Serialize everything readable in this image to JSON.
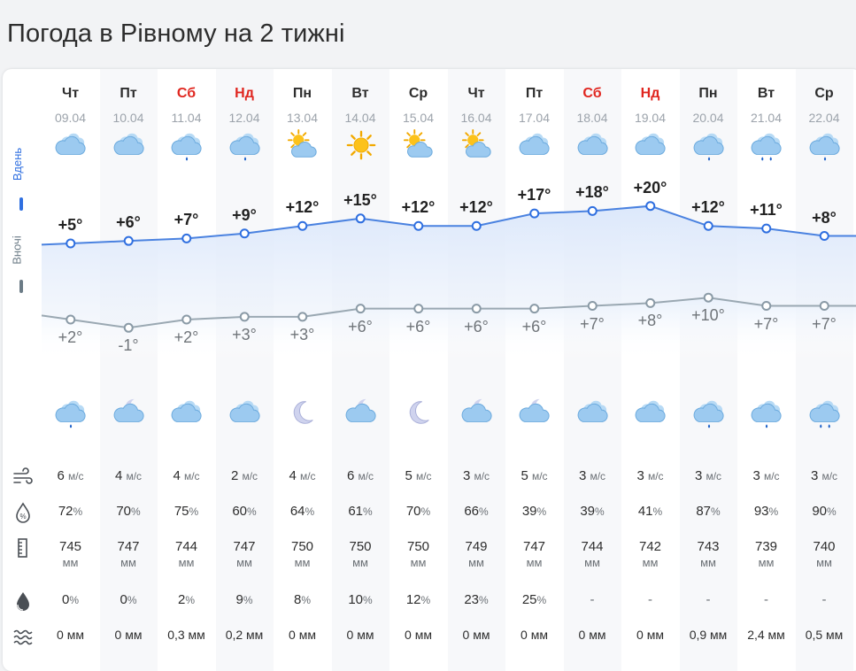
{
  "page": {
    "title": "Погода в Рівному на 2 тижні"
  },
  "legend": {
    "day_label": "Вдень",
    "night_label": "Вночі",
    "day_color": "#2f6fe0",
    "night_color": "#6b7b86"
  },
  "days": [
    {
      "name": "Чт",
      "date": "09.04",
      "weekend": false,
      "day_icon": "cloudy",
      "night_icon": "cloud-rain",
      "t_day": "+5°",
      "t_night": "+2°",
      "t_day_v": 5,
      "t_night_v": 2,
      "wind": "6",
      "humidity": "72",
      "pressure": "745",
      "precip_prob": "0",
      "precip": "0 мм"
    },
    {
      "name": "Пт",
      "date": "10.04",
      "weekend": false,
      "day_icon": "cloudy",
      "night_icon": "cloud-moon",
      "t_day": "+6°",
      "t_night": "-1°",
      "t_day_v": 6,
      "t_night_v": -1,
      "wind": "4",
      "humidity": "70",
      "pressure": "747",
      "precip_prob": "0",
      "precip": "0 мм"
    },
    {
      "name": "Сб",
      "date": "11.04",
      "weekend": true,
      "day_icon": "cloud-rain",
      "night_icon": "cloudy",
      "t_day": "+7°",
      "t_night": "+2°",
      "t_day_v": 7,
      "t_night_v": 2,
      "wind": "4",
      "humidity": "75",
      "pressure": "744",
      "precip_prob": "2",
      "precip": "0,3 мм"
    },
    {
      "name": "Нд",
      "date": "12.04",
      "weekend": true,
      "day_icon": "cloud-rain",
      "night_icon": "cloudy",
      "t_day": "+9°",
      "t_night": "+3°",
      "t_day_v": 9,
      "t_night_v": 3,
      "wind": "2",
      "humidity": "60",
      "pressure": "747",
      "precip_prob": "9",
      "precip": "0,2 мм"
    },
    {
      "name": "Пн",
      "date": "13.04",
      "weekend": false,
      "day_icon": "partly-sunny",
      "night_icon": "moon",
      "t_day": "+12°",
      "t_night": "+3°",
      "t_day_v": 12,
      "t_night_v": 3,
      "wind": "4",
      "humidity": "64",
      "pressure": "750",
      "precip_prob": "8",
      "precip": "0 мм"
    },
    {
      "name": "Вт",
      "date": "14.04",
      "weekend": false,
      "day_icon": "sun",
      "night_icon": "cloud-moon",
      "t_day": "+15°",
      "t_night": "+6°",
      "t_day_v": 15,
      "t_night_v": 6,
      "wind": "6",
      "humidity": "61",
      "pressure": "750",
      "precip_prob": "10",
      "precip": "0 мм"
    },
    {
      "name": "Ср",
      "date": "15.04",
      "weekend": false,
      "day_icon": "partly-sunny",
      "night_icon": "moon",
      "t_day": "+12°",
      "t_night": "+6°",
      "t_day_v": 12,
      "t_night_v": 6,
      "wind": "5",
      "humidity": "70",
      "pressure": "750",
      "precip_prob": "12",
      "precip": "0 мм"
    },
    {
      "name": "Чт",
      "date": "16.04",
      "weekend": false,
      "day_icon": "partly-sunny",
      "night_icon": "cloud-moon",
      "t_day": "+12°",
      "t_night": "+6°",
      "t_day_v": 12,
      "t_night_v": 6,
      "wind": "3",
      "humidity": "66",
      "pressure": "749",
      "precip_prob": "23",
      "precip": "0 мм"
    },
    {
      "name": "Пт",
      "date": "17.04",
      "weekend": false,
      "day_icon": "cloudy",
      "night_icon": "cloud-moon",
      "t_day": "+17°",
      "t_night": "+6°",
      "t_day_v": 17,
      "t_night_v": 6,
      "wind": "5",
      "humidity": "39",
      "pressure": "747",
      "precip_prob": "25",
      "precip": "0 мм"
    },
    {
      "name": "Сб",
      "date": "18.04",
      "weekend": true,
      "day_icon": "cloudy",
      "night_icon": "cloudy",
      "t_day": "+18°",
      "t_night": "+7°",
      "t_day_v": 18,
      "t_night_v": 7,
      "wind": "3",
      "humidity": "39",
      "pressure": "744",
      "precip_prob": "-",
      "precip": "0 мм"
    },
    {
      "name": "Нд",
      "date": "19.04",
      "weekend": true,
      "day_icon": "cloudy",
      "night_icon": "cloudy",
      "t_day": "+20°",
      "t_night": "+8°",
      "t_day_v": 20,
      "t_night_v": 8,
      "wind": "3",
      "humidity": "41",
      "pressure": "742",
      "precip_prob": "-",
      "precip": "0 мм"
    },
    {
      "name": "Пн",
      "date": "20.04",
      "weekend": false,
      "day_icon": "cloud-rain",
      "night_icon": "cloud-rain",
      "t_day": "+12°",
      "t_night": "+10°",
      "t_day_v": 12,
      "t_night_v": 10,
      "wind": "3",
      "humidity": "87",
      "pressure": "743",
      "precip_prob": "-",
      "precip": "0,9 мм"
    },
    {
      "name": "Вт",
      "date": "21.04",
      "weekend": false,
      "day_icon": "cloud-rain-heavy",
      "night_icon": "cloud-rain",
      "t_day": "+11°",
      "t_night": "+7°",
      "t_day_v": 11,
      "t_night_v": 7,
      "wind": "3",
      "humidity": "93",
      "pressure": "739",
      "precip_prob": "-",
      "precip": "2,4 мм"
    },
    {
      "name": "Ср",
      "date": "22.04",
      "weekend": false,
      "day_icon": "cloud-rain",
      "night_icon": "cloud-rain-heavy",
      "t_day": "+8°",
      "t_night": "+7°",
      "t_day_v": 8,
      "t_night_v": 7,
      "wind": "3",
      "humidity": "90",
      "pressure": "740",
      "precip_prob": "-",
      "precip": "0,5 мм"
    }
  ],
  "units": {
    "wind": "м/с",
    "humidity": "%",
    "pressure": "мм",
    "precip_prob": "%"
  },
  "icons": {
    "wind": "wind-icon",
    "humidity": "humidity-icon",
    "pressure": "pressure-icon",
    "precip_prob": "raindrop-icon",
    "precip": "precipitation-icon"
  },
  "colors": {
    "weekend": "#e0261f",
    "accent": "#2f6fe0",
    "night_line": "#8a9aa6"
  }
}
